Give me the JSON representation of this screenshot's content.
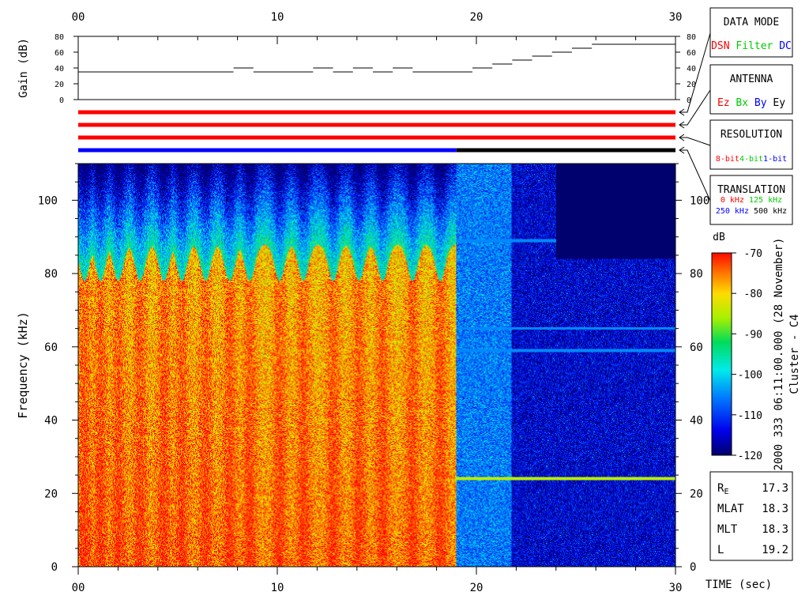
{
  "chart_data": {
    "type": "heatmap",
    "time_axis": {
      "label": "TIME (sec)",
      "range": [
        0,
        30
      ],
      "major_ticks": [
        "00",
        "10",
        "20",
        "30"
      ],
      "major_values": [
        0,
        10,
        20,
        30
      ],
      "bottom_ticks": [
        "00",
        "10",
        "20",
        "30"
      ]
    },
    "gain_panel": {
      "ylabel": "Gain (dB)",
      "ylim": [
        0,
        80
      ],
      "ticks": [
        "0",
        "20",
        "40",
        "60",
        "80"
      ],
      "tick_values": [
        0,
        20,
        40,
        60,
        80
      ],
      "steps": [
        {
          "t0": 0.0,
          "t1": 7.8,
          "gain": 35
        },
        {
          "t0": 7.8,
          "t1": 8.8,
          "gain": 40
        },
        {
          "t0": 8.8,
          "t1": 11.8,
          "gain": 35
        },
        {
          "t0": 11.8,
          "t1": 12.8,
          "gain": 40
        },
        {
          "t0": 12.8,
          "t1": 13.8,
          "gain": 35
        },
        {
          "t0": 13.8,
          "t1": 14.8,
          "gain": 40
        },
        {
          "t0": 14.8,
          "t1": 15.8,
          "gain": 35
        },
        {
          "t0": 15.8,
          "t1": 16.8,
          "gain": 40
        },
        {
          "t0": 16.8,
          "t1": 19.8,
          "gain": 35
        },
        {
          "t0": 19.8,
          "t1": 20.8,
          "gain": 40
        },
        {
          "t0": 20.8,
          "t1": 21.8,
          "gain": 45
        },
        {
          "t0": 21.8,
          "t1": 22.8,
          "gain": 50
        },
        {
          "t0": 22.8,
          "t1": 23.8,
          "gain": 55
        },
        {
          "t0": 23.8,
          "t1": 24.8,
          "gain": 60
        },
        {
          "t0": 24.8,
          "t1": 25.8,
          "gain": 65
        },
        {
          "t0": 25.8,
          "t1": 30.0,
          "gain": 70
        }
      ]
    },
    "status_bars": [
      {
        "name": "data mode",
        "segments": [
          {
            "t0": 0,
            "t1": 30,
            "color": "#ff0000"
          }
        ]
      },
      {
        "name": "antenna",
        "segments": [
          {
            "t0": 0,
            "t1": 30,
            "color": "#ff0000"
          }
        ]
      },
      {
        "name": "resolution",
        "segments": [
          {
            "t0": 0,
            "t1": 30,
            "color": "#ff0000"
          }
        ]
      },
      {
        "name": "translation",
        "segments": [
          {
            "t0": 0,
            "t1": 19,
            "color": "#0000ff"
          },
          {
            "t0": 19,
            "t1": 30,
            "color": "#000000"
          }
        ]
      }
    ],
    "spectrogram": {
      "ylabel": "Frequency (kHz)",
      "ylim": [
        0,
        110
      ],
      "yticks": [
        "0",
        "20",
        "40",
        "60",
        "80",
        "100"
      ],
      "ytick_values": [
        0,
        20,
        40,
        60,
        80,
        100
      ],
      "regimes": [
        {
          "t0": 0,
          "t1": 19,
          "description_level_db": -72,
          "cutoff_khz": 88
        },
        {
          "t0": 19,
          "t1": 21.8,
          "description_level_db": -110
        },
        {
          "t0": 21.8,
          "t1": 30,
          "description_level_db": -116
        }
      ],
      "bursts_t": [
        0.3,
        1.1,
        2.0,
        3.1,
        4.3,
        5.2,
        6.4,
        7.6,
        8.6,
        10.1,
        11.3,
        12.8,
        14.1,
        15.3,
        16.8,
        18.2
      ],
      "emission_lines_khz": [
        24,
        59,
        65,
        89
      ],
      "no_data_region": {
        "t0": 24,
        "t1": 30,
        "f0": 84,
        "f1": 110
      }
    },
    "colorbar": {
      "unit": "dB",
      "range": [
        -120,
        -70
      ],
      "ticks": [
        "-70",
        "-80",
        "-90",
        "-100",
        "-110",
        "-120"
      ],
      "tick_values": [
        -70,
        -80,
        -90,
        -100,
        -110,
        -120
      ]
    }
  },
  "legend": {
    "data_mode": {
      "title": "DATA MODE",
      "items": [
        {
          "label": "DSN",
          "color": "#ff0000"
        },
        {
          "label": "Filter",
          "color": "#00cc00"
        },
        {
          "label": "DC",
          "color": "#0000ff"
        }
      ]
    },
    "antenna": {
      "title": "ANTENNA",
      "items": [
        {
          "label": "Ez",
          "color": "#ff0000"
        },
        {
          "label": "Bx",
          "color": "#00cc00"
        },
        {
          "label": "By",
          "color": "#0000ff"
        },
        {
          "label": "Ey",
          "color": "#000000"
        }
      ]
    },
    "resolution": {
      "title": "RESOLUTION",
      "items": [
        {
          "label": "8-bit",
          "color": "#ff0000"
        },
        {
          "label": "4-bit",
          "color": "#00cc00"
        },
        {
          "label": "1-bit",
          "color": "#0000ff"
        }
      ]
    },
    "translation": {
      "title": "TRANSLATION",
      "items": [
        {
          "label": "0 kHz",
          "color": "#ff0000"
        },
        {
          "label": "125 kHz",
          "color": "#00cc00"
        },
        {
          "label": "250 kHz",
          "color": "#0000ff"
        },
        {
          "label": "500 kHz",
          "color": "#000000"
        }
      ]
    }
  },
  "side_text": {
    "date_label": "2000 333 06:11:00.000 (28 November)",
    "spacecraft": "Cluster - C4"
  },
  "orbit_info": [
    {
      "label": "R",
      "sub": "E",
      "value": "17.3"
    },
    {
      "label": "MLAT",
      "sub": "",
      "value": "18.3"
    },
    {
      "label": "MLT",
      "sub": "",
      "value": "18.3"
    },
    {
      "label": "L",
      "sub": "",
      "value": "19.2"
    }
  ]
}
